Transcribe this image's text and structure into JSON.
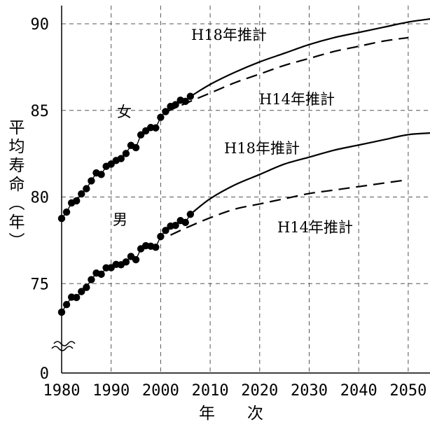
{
  "chart_data": {
    "type": "line",
    "title": "",
    "xlabel": "年　　次",
    "ylabel": "平均寿命（年）",
    "xlim": [
      1980,
      2055
    ],
    "ylim": [
      0,
      90
    ],
    "y_axis_break": true,
    "x_ticks": [
      "1980",
      "1990",
      "2000",
      "2010",
      "2020",
      "2030",
      "2040",
      "2050"
    ],
    "y_ticks": [
      "0",
      "75",
      "80",
      "85",
      "90"
    ],
    "grid": true,
    "annotations": {
      "female": "女",
      "male": "男",
      "female_h18": "H18年推計",
      "female_h14": "H14年推計",
      "male_h18": "H18年推計",
      "male_h14": "H14年推計"
    },
    "series": [
      {
        "name": "女",
        "role": "actual",
        "x": [
          1980,
          1981,
          1982,
          1983,
          1984,
          1985,
          1986,
          1987,
          1988,
          1989,
          1990,
          1991,
          1992,
          1993,
          1994,
          1995,
          1996,
          1997,
          1998,
          1999,
          2000,
          2001,
          2002,
          2003,
          2004,
          2005,
          2006
        ],
        "y": [
          78.76,
          79.13,
          79.66,
          79.78,
          80.18,
          80.48,
          80.93,
          81.39,
          81.3,
          81.77,
          81.9,
          82.11,
          82.22,
          82.51,
          82.98,
          82.85,
          83.59,
          83.82,
          84.01,
          83.99,
          84.6,
          84.93,
          85.23,
          85.33,
          85.59,
          85.52,
          85.81
        ]
      },
      {
        "name": "女 H18年推計",
        "role": "projection",
        "x": [
          2006,
          2010,
          2015,
          2020,
          2025,
          2030,
          2035,
          2040,
          2045,
          2050,
          2055
        ],
        "y": [
          85.8,
          86.5,
          87.2,
          87.8,
          88.3,
          88.8,
          89.2,
          89.5,
          89.8,
          90.1,
          90.3
        ]
      },
      {
        "name": "女 H14年推計",
        "role": "projection",
        "x": [
          2001,
          2005,
          2010,
          2015,
          2020,
          2025,
          2030,
          2035,
          2040,
          2045,
          2050
        ],
        "y": [
          84.9,
          85.4,
          86.0,
          86.6,
          87.1,
          87.6,
          88.0,
          88.4,
          88.7,
          89.0,
          89.2
        ]
      },
      {
        "name": "男",
        "role": "actual",
        "x": [
          1980,
          1981,
          1982,
          1983,
          1984,
          1985,
          1986,
          1987,
          1988,
          1989,
          1990,
          1991,
          1992,
          1993,
          1994,
          1995,
          1996,
          1997,
          1998,
          1999,
          2000,
          2001,
          2002,
          2003,
          2004,
          2005,
          2006
        ],
        "y": [
          73.35,
          73.79,
          74.22,
          74.2,
          74.54,
          74.78,
          75.23,
          75.61,
          75.54,
          75.91,
          75.92,
          76.11,
          76.09,
          76.25,
          76.57,
          76.38,
          77.01,
          77.19,
          77.16,
          77.1,
          77.72,
          78.07,
          78.32,
          78.36,
          78.64,
          78.53,
          79.0
        ],
        "y_projection": []
      },
      {
        "name": "男 H18年推計",
        "role": "projection",
        "x": [
          2006,
          2010,
          2015,
          2020,
          2025,
          2030,
          2035,
          2040,
          2045,
          2050,
          2055
        ],
        "y": [
          79.0,
          79.9,
          80.7,
          81.3,
          81.9,
          82.3,
          82.7,
          83.0,
          83.3,
          83.6,
          83.7
        ]
      },
      {
        "name": "男 H14年推計",
        "role": "projection",
        "x": [
          2002,
          2005,
          2010,
          2015,
          2020,
          2025,
          2030,
          2035,
          2040,
          2045,
          2050
        ],
        "y": [
          77.8,
          78.2,
          78.8,
          79.3,
          79.6,
          79.9,
          80.2,
          80.4,
          80.6,
          80.8,
          81.0
        ]
      }
    ]
  }
}
